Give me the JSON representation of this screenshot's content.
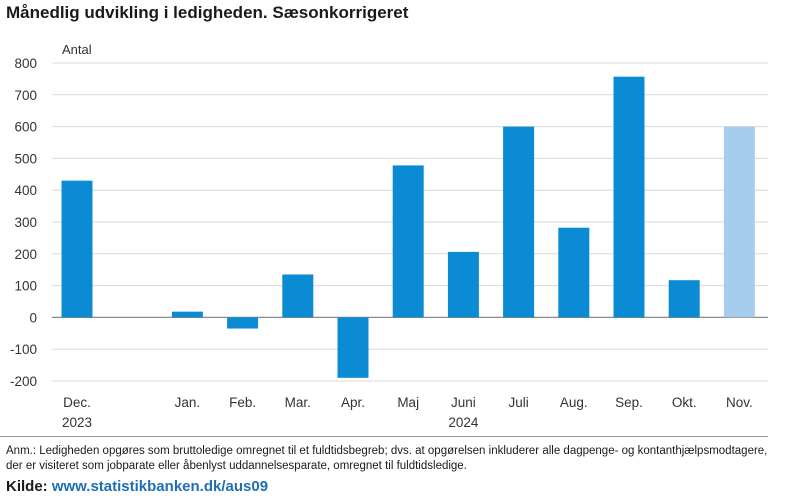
{
  "title": "Månedlig udvikling i ledigheden. Sæsonkorrigeret",
  "chart_data": {
    "type": "bar",
    "ylabel": "Antal",
    "ylim": [
      -200,
      800
    ],
    "yticks": [
      -200,
      -100,
      0,
      100,
      200,
      300,
      400,
      500,
      600,
      700,
      800
    ],
    "grid": true,
    "categories": [
      "Dec.",
      "",
      "Jan.",
      "Feb.",
      "Mar.",
      "Apr.",
      "Maj",
      "Juni",
      "Juli",
      "Aug.",
      "Sep.",
      "Okt.",
      "Nov."
    ],
    "year_labels": [
      {
        "index": 0,
        "label": "2023"
      },
      {
        "index": 7,
        "label": "2024"
      }
    ],
    "values": [
      430,
      null,
      18,
      -35,
      135,
      -190,
      478,
      206,
      600,
      282,
      757,
      117,
      600
    ],
    "colors": {
      "bar": "#0a8bd3",
      "highlight": "#a6cdee"
    },
    "highlight_index": 12
  },
  "note": "Anm.: Ledigheden opgøres som bruttoledige omregnet til et fuldtidsbegreb; dvs. at opgørelsen inkluderer alle dagpenge- og kontanthjælpsmodtagere, der er visiteret som jobparate eller åbenlyst uddannelsesparate, omregnet til fuldtidsledige.",
  "source": {
    "label": "Kilde:",
    "link": "www.statistikbanken.dk/aus09"
  }
}
